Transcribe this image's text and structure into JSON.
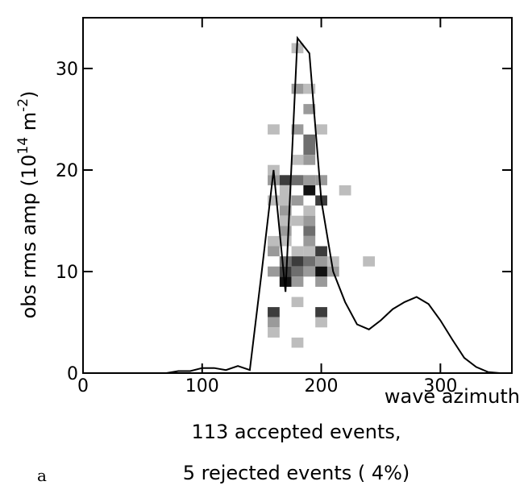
{
  "chart_data": {
    "type": "heatmap",
    "xlabel": "wave azimuth",
    "ylabel_main": "obs rms amp (10",
    "ylabel_sup1": "14",
    "ylabel_mid": " m",
    "ylabel_sup2": "-2",
    "ylabel_end": ")",
    "xlim": [
      0,
      360
    ],
    "ylim": [
      0,
      35
    ],
    "x_ticks": [
      0,
      100,
      200,
      300
    ],
    "y_ticks": [
      0,
      10,
      20,
      30
    ],
    "x_tick_labels": [
      "0",
      "100",
      "200",
      "300"
    ],
    "y_tick_labels": [
      "0",
      "10",
      "20",
      "30"
    ],
    "cell_width": 10,
    "cell_height": 1,
    "cells": [
      {
        "x": 180,
        "y": 32,
        "level": 1
      },
      {
        "x": 180,
        "y": 28,
        "level": 2
      },
      {
        "x": 190,
        "y": 28,
        "level": 1
      },
      {
        "x": 190,
        "y": 26,
        "level": 2
      },
      {
        "x": 160,
        "y": 24,
        "level": 1
      },
      {
        "x": 180,
        "y": 24,
        "level": 2
      },
      {
        "x": 200,
        "y": 24,
        "level": 1
      },
      {
        "x": 190,
        "y": 23,
        "level": 3
      },
      {
        "x": 190,
        "y": 22,
        "level": 3
      },
      {
        "x": 180,
        "y": 21,
        "level": 1
      },
      {
        "x": 190,
        "y": 21,
        "level": 2
      },
      {
        "x": 160,
        "y": 20,
        "level": 1
      },
      {
        "x": 160,
        "y": 19,
        "level": 2
      },
      {
        "x": 170,
        "y": 19,
        "level": 4
      },
      {
        "x": 180,
        "y": 19,
        "level": 3
      },
      {
        "x": 190,
        "y": 19,
        "level": 2
      },
      {
        "x": 200,
        "y": 19,
        "level": 2
      },
      {
        "x": 170,
        "y": 18,
        "level": 1
      },
      {
        "x": 190,
        "y": 18,
        "level": 5
      },
      {
        "x": 220,
        "y": 18,
        "level": 1
      },
      {
        "x": 160,
        "y": 17,
        "level": 1
      },
      {
        "x": 170,
        "y": 17,
        "level": 1
      },
      {
        "x": 180,
        "y": 17,
        "level": 2
      },
      {
        "x": 200,
        "y": 17,
        "level": 4
      },
      {
        "x": 170,
        "y": 16,
        "level": 2
      },
      {
        "x": 190,
        "y": 16,
        "level": 1
      },
      {
        "x": 170,
        "y": 15,
        "level": 1
      },
      {
        "x": 180,
        "y": 15,
        "level": 1
      },
      {
        "x": 190,
        "y": 15,
        "level": 2
      },
      {
        "x": 170,
        "y": 14,
        "level": 2
      },
      {
        "x": 190,
        "y": 14,
        "level": 3
      },
      {
        "x": 160,
        "y": 13,
        "level": 1
      },
      {
        "x": 170,
        "y": 13,
        "level": 1
      },
      {
        "x": 190,
        "y": 13,
        "level": 2
      },
      {
        "x": 160,
        "y": 12,
        "level": 2
      },
      {
        "x": 180,
        "y": 12,
        "level": 1
      },
      {
        "x": 190,
        "y": 12,
        "level": 1
      },
      {
        "x": 200,
        "y": 12,
        "level": 4
      },
      {
        "x": 170,
        "y": 11,
        "level": 3
      },
      {
        "x": 180,
        "y": 11,
        "level": 4
      },
      {
        "x": 190,
        "y": 11,
        "level": 3
      },
      {
        "x": 200,
        "y": 11,
        "level": 2
      },
      {
        "x": 210,
        "y": 11,
        "level": 1
      },
      {
        "x": 240,
        "y": 11,
        "level": 1
      },
      {
        "x": 160,
        "y": 10,
        "level": 2
      },
      {
        "x": 170,
        "y": 10,
        "level": 4
      },
      {
        "x": 180,
        "y": 10,
        "level": 3
      },
      {
        "x": 190,
        "y": 10,
        "level": 2
      },
      {
        "x": 200,
        "y": 10,
        "level": 5
      },
      {
        "x": 210,
        "y": 10,
        "level": 2
      },
      {
        "x": 170,
        "y": 9,
        "level": 5
      },
      {
        "x": 180,
        "y": 9,
        "level": 2
      },
      {
        "x": 200,
        "y": 9,
        "level": 2
      },
      {
        "x": 180,
        "y": 7,
        "level": 1
      },
      {
        "x": 160,
        "y": 6,
        "level": 4
      },
      {
        "x": 200,
        "y": 6,
        "level": 4
      },
      {
        "x": 160,
        "y": 5,
        "level": 2
      },
      {
        "x": 200,
        "y": 5,
        "level": 1
      },
      {
        "x": 160,
        "y": 4,
        "level": 1
      },
      {
        "x": 180,
        "y": 3,
        "level": 1
      }
    ],
    "level_colors": [
      "#ffffff",
      "#bdbdbd",
      "#9a9a9a",
      "#6e6e6e",
      "#3c3c3c",
      "#111111"
    ],
    "series": [
      {
        "x": [
          0,
          70,
          80,
          90,
          100,
          110,
          120,
          130,
          140,
          150,
          160,
          170,
          180,
          190,
          200,
          210,
          220,
          230,
          240,
          250,
          260,
          270,
          280,
          290,
          300,
          310,
          320,
          330,
          340,
          350,
          360
        ],
        "y": [
          0,
          0,
          0.2,
          0.2,
          0.5,
          0.5,
          0.3,
          0.7,
          0.3,
          10,
          20,
          8,
          33,
          31.5,
          17,
          10,
          7,
          4.8,
          4.3,
          5.2,
          6.3,
          7,
          7.5,
          6.8,
          5.2,
          3.3,
          1.5,
          0.6,
          0.1,
          0,
          0
        ]
      }
    ]
  },
  "caption": {
    "line1": "113 accepted events,",
    "line2": "5 rejected events ( 4%)",
    "panel_letter": "a"
  }
}
